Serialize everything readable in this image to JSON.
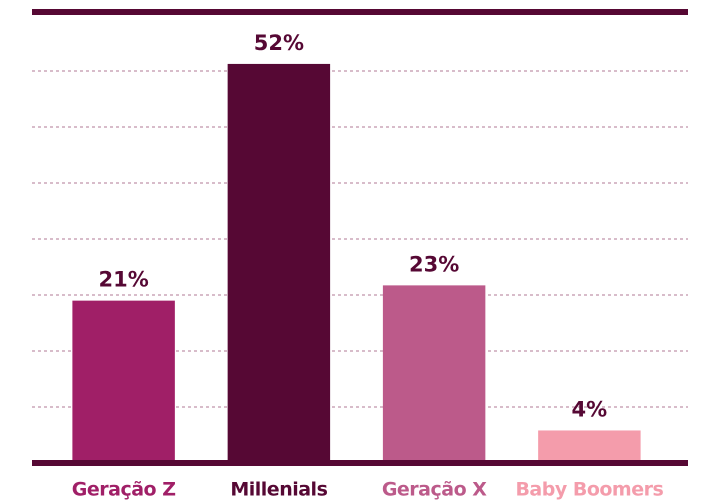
{
  "chart_data": {
    "type": "bar",
    "categories": [
      "Geração Z",
      "Millenials",
      "Geração X",
      "Baby Boomers"
    ],
    "values": [
      21,
      52,
      23,
      4
    ],
    "value_labels": [
      "21%",
      "52%",
      "23%",
      "4%"
    ],
    "colors": [
      "#a01f67",
      "#560834",
      "#bc5a8a",
      "#f49cab"
    ],
    "ylim": [
      0,
      58.8
    ],
    "grid": true
  }
}
